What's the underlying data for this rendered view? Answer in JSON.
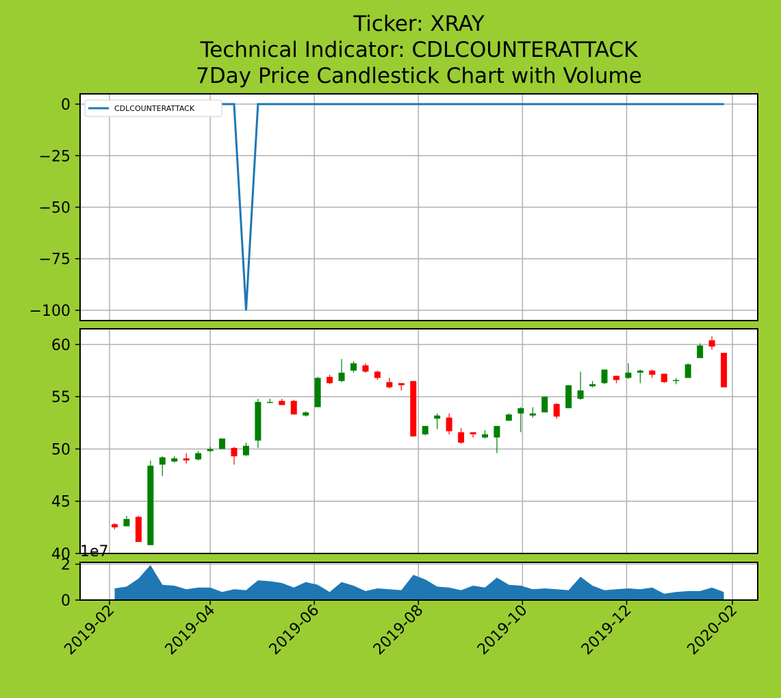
{
  "colors": {
    "background": "#9acd32",
    "line": "#1f77b4",
    "up": "#008000",
    "down": "#ff0000",
    "volume": "#1f77b4",
    "grid": "#b0b0b0"
  },
  "chart_data": {
    "title_lines": [
      "Ticker: XRAY",
      "Technical Indicator: CDLCOUNTERATTACK",
      "7Day Price Candlestick Chart with Volume"
    ],
    "x_ticks": [
      "2019-02",
      "2019-04",
      "2019-06",
      "2019-08",
      "2019-10",
      "2019-12",
      "2020-02"
    ],
    "dates": [
      "2019-02-04",
      "2019-02-11",
      "2019-02-18",
      "2019-02-25",
      "2019-03-04",
      "2019-03-11",
      "2019-03-18",
      "2019-03-25",
      "2019-04-01",
      "2019-04-08",
      "2019-04-15",
      "2019-04-22",
      "2019-04-29",
      "2019-05-06",
      "2019-05-13",
      "2019-05-20",
      "2019-05-27",
      "2019-06-03",
      "2019-06-10",
      "2019-06-17",
      "2019-06-24",
      "2019-07-01",
      "2019-07-08",
      "2019-07-15",
      "2019-07-22",
      "2019-07-29",
      "2019-08-05",
      "2019-08-12",
      "2019-08-19",
      "2019-08-26",
      "2019-09-02",
      "2019-09-09",
      "2019-09-16",
      "2019-09-23",
      "2019-09-30",
      "2019-10-07",
      "2019-10-14",
      "2019-10-21",
      "2019-10-28",
      "2019-11-04",
      "2019-11-11",
      "2019-11-18",
      "2019-11-25",
      "2019-12-02",
      "2019-12-09",
      "2019-12-16",
      "2019-12-23",
      "2019-12-30",
      "2020-01-06",
      "2020-01-13",
      "2020-01-20",
      "2020-01-27"
    ],
    "indicator": {
      "type": "line",
      "legend_label": "CDLCOUNTERATTACK",
      "y_ticks": [
        0,
        -25,
        -50,
        -75,
        -100
      ],
      "ylim": [
        -105,
        5
      ],
      "values": [
        0,
        0,
        0,
        0,
        0,
        0,
        0,
        0,
        0,
        0,
        0,
        -100,
        0,
        0,
        0,
        0,
        0,
        0,
        0,
        0,
        0,
        0,
        0,
        0,
        0,
        0,
        0,
        0,
        0,
        0,
        0,
        0,
        0,
        0,
        0,
        0,
        0,
        0,
        0,
        0,
        0,
        0,
        0,
        0,
        0,
        0,
        0,
        0,
        0,
        0,
        0,
        0
      ]
    },
    "price": {
      "type": "candlestick",
      "y_ticks": [
        40,
        45,
        50,
        55,
        60
      ],
      "ylim": [
        40,
        61.5
      ],
      "open": [
        42.8,
        42.6,
        43.5,
        40.8,
        48.5,
        48.8,
        49.1,
        49.0,
        49.8,
        50.0,
        50.1,
        49.4,
        50.8,
        54.4,
        54.6,
        54.6,
        53.2,
        54.0,
        56.9,
        56.5,
        57.5,
        58.0,
        57.4,
        56.4,
        56.3,
        56.5,
        51.4,
        52.9,
        53.0,
        51.6,
        51.6,
        51.1,
        51.1,
        52.7,
        53.4,
        53.2,
        53.5,
        54.3,
        53.9,
        54.8,
        56.0,
        56.3,
        57.0,
        56.8,
        57.3,
        57.5,
        57.2,
        56.5,
        56.8,
        58.7,
        60.4,
        59.2
      ],
      "close": [
        42.5,
        43.3,
        41.1,
        48.4,
        49.2,
        49.1,
        48.9,
        49.6,
        50.0,
        51.0,
        49.3,
        50.3,
        54.5,
        54.5,
        54.2,
        53.3,
        53.5,
        56.8,
        56.3,
        57.3,
        58.2,
        57.4,
        56.8,
        55.9,
        56.1,
        51.2,
        52.2,
        53.2,
        51.7,
        50.6,
        51.4,
        51.4,
        52.2,
        53.3,
        53.9,
        53.4,
        55.0,
        53.1,
        56.1,
        55.6,
        56.2,
        57.6,
        56.6,
        57.3,
        57.5,
        57.1,
        56.4,
        56.6,
        58.1,
        59.9,
        59.8,
        55.9
      ],
      "high": [
        42.9,
        43.6,
        43.6,
        48.9,
        49.3,
        49.3,
        49.6,
        49.8,
        50.2,
        51.0,
        50.2,
        50.6,
        54.8,
        54.8,
        54.8,
        54.7,
        53.6,
        56.9,
        57.1,
        58.6,
        58.4,
        58.2,
        57.5,
        56.8,
        56.3,
        56.5,
        52.2,
        53.4,
        53.4,
        52.0,
        51.6,
        51.8,
        52.2,
        53.4,
        54.0,
        54.0,
        55.0,
        54.4,
        56.1,
        57.4,
        56.5,
        57.6,
        57.0,
        58.2,
        57.6,
        57.6,
        57.2,
        56.8,
        58.2,
        60.1,
        60.8,
        59.2
      ],
      "low": [
        42.3,
        42.6,
        41.1,
        40.8,
        47.4,
        48.7,
        48.6,
        48.9,
        49.7,
        50.0,
        48.5,
        49.3,
        50.1,
        54.4,
        54.2,
        53.3,
        53.1,
        54.0,
        56.2,
        56.4,
        57.3,
        57.3,
        56.6,
        55.8,
        55.6,
        51.2,
        51.3,
        51.9,
        51.4,
        50.5,
        51.1,
        51.0,
        49.6,
        52.7,
        51.6,
        53.0,
        53.5,
        52.9,
        53.9,
        54.7,
        55.9,
        56.2,
        56.3,
        56.7,
        56.3,
        56.8,
        56.3,
        56.2,
        56.8,
        58.7,
        59.5,
        55.9
      ]
    },
    "volume": {
      "type": "area",
      "offset_label": "1e7",
      "y_ticks": [
        0,
        2
      ],
      "ylim": [
        0,
        2.1
      ],
      "values": [
        0.65,
        0.75,
        1.2,
        1.95,
        0.85,
        0.8,
        0.6,
        0.7,
        0.7,
        0.45,
        0.6,
        0.55,
        1.1,
        1.05,
        0.95,
        0.7,
        1.0,
        0.85,
        0.45,
        1.0,
        0.8,
        0.5,
        0.65,
        0.6,
        0.55,
        1.4,
        1.15,
        0.75,
        0.7,
        0.55,
        0.8,
        0.7,
        1.25,
        0.85,
        0.8,
        0.6,
        0.65,
        0.6,
        0.55,
        1.3,
        0.8,
        0.55,
        0.6,
        0.65,
        0.6,
        0.7,
        0.35,
        0.45,
        0.5,
        0.5,
        0.7,
        0.45
      ]
    }
  }
}
